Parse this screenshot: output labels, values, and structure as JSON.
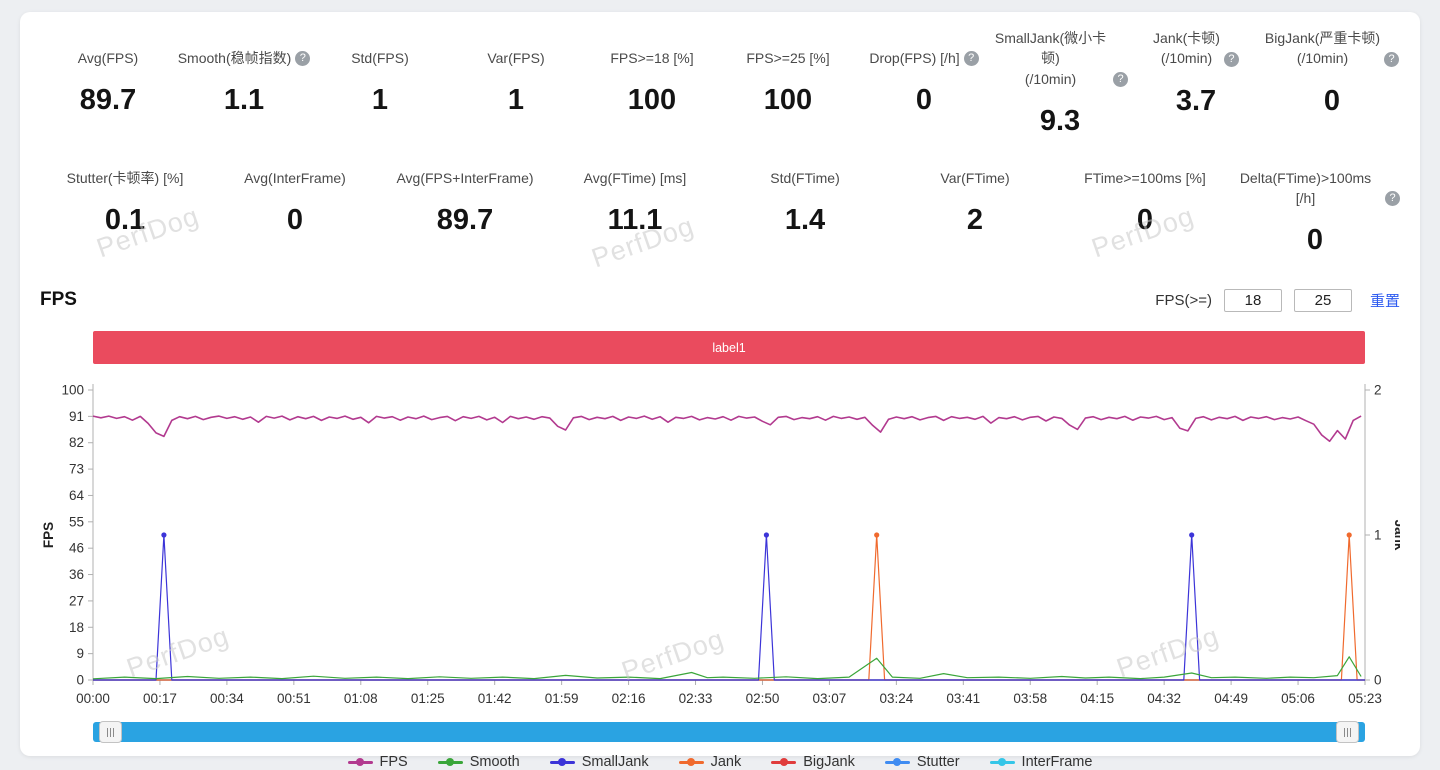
{
  "stats": {
    "row1": [
      {
        "label": "Avg(FPS)",
        "value": "89.7",
        "help": false
      },
      {
        "label": "Smooth(稳帧指数)",
        "value": "1.1",
        "help": true
      },
      {
        "label": "Std(FPS)",
        "value": "1",
        "help": false
      },
      {
        "label": "Var(FPS)",
        "value": "1",
        "help": false
      },
      {
        "label": "FPS>=18 [%]",
        "value": "100",
        "help": false
      },
      {
        "label": "FPS>=25 [%]",
        "value": "100",
        "help": false
      },
      {
        "label": "Drop(FPS) [/h]",
        "value": "0",
        "help": true
      },
      {
        "label": "SmallJank(微小卡顿)\n(/10min)",
        "value": "9.3",
        "help": true
      },
      {
        "label": "Jank(卡顿)\n(/10min)",
        "value": "3.7",
        "help": true
      },
      {
        "label": "BigJank(严重卡顿)\n(/10min)",
        "value": "0",
        "help": true
      }
    ],
    "row2": [
      {
        "label": "Stutter(卡顿率) [%]",
        "value": "0.1",
        "help": false
      },
      {
        "label": "Avg(InterFrame)",
        "value": "0",
        "help": false
      },
      {
        "label": "Avg(FPS+InterFrame)",
        "value": "89.7",
        "help": false
      },
      {
        "label": "Avg(FTime) [ms]",
        "value": "11.1",
        "help": false
      },
      {
        "label": "Std(FTime)",
        "value": "1.4",
        "help": false
      },
      {
        "label": "Var(FTime)",
        "value": "2",
        "help": false
      },
      {
        "label": "FTime>=100ms [%]",
        "value": "0",
        "help": false
      },
      {
        "label": "Delta(FTime)>100ms [/h]",
        "value": "0",
        "help": true
      }
    ]
  },
  "fps_section": {
    "title": "FPS",
    "threshold_label": "FPS(>=)",
    "threshold_low": "18",
    "threshold_high": "25",
    "reset_label": "重置"
  },
  "watermark": {
    "text": "PerfDog"
  },
  "chart_data": {
    "type": "line",
    "banner_label": "label1",
    "banner_color": "#ea4b5e",
    "duration_s": 323,
    "x_ticks": [
      "00:00",
      "00:17",
      "00:34",
      "00:51",
      "01:08",
      "01:25",
      "01:42",
      "01:59",
      "02:16",
      "02:33",
      "02:50",
      "03:07",
      "03:24",
      "03:41",
      "03:58",
      "04:15",
      "04:32",
      "04:49",
      "05:06",
      "05:23"
    ],
    "left_axis": {
      "label": "FPS",
      "min": 0,
      "max": 100,
      "ticks": [
        0,
        9,
        18,
        27,
        36,
        46,
        55,
        64,
        73,
        82,
        91,
        100
      ]
    },
    "right_axis": {
      "label": "Jank",
      "min": 0,
      "max": 2,
      "ticks": [
        0,
        1,
        2
      ]
    },
    "legend_position": "bottom",
    "grid": false,
    "series": [
      {
        "name": "FPS",
        "color": "#b23a8f",
        "axis": "left",
        "dt": 2,
        "values": [
          91,
          90.4,
          91,
          90.2,
          90.8,
          89.6,
          90.9,
          88.5,
          85.2,
          84,
          89.5,
          90.8,
          90.1,
          90.9,
          89.8,
          90.6,
          91,
          90.2,
          90.8,
          89.9,
          90.7,
          88.9,
          90.9,
          90.3,
          91,
          89.7,
          90.8,
          90.1,
          90.9,
          89.5,
          90.7,
          90.2,
          91,
          89.9,
          90.6,
          88.7,
          90.9,
          90.3,
          90.8,
          89.6,
          90.7,
          90.1,
          91,
          89.8,
          90.5,
          90.9,
          89.4,
          90.8,
          90.2,
          90.9,
          89.7,
          90.6,
          88.8,
          90.9,
          90.1,
          90.7,
          89.9,
          90.8,
          90.3,
          87.5,
          86.2,
          90.4,
          90.9,
          89.8,
          90.6,
          90.1,
          90.9,
          89.5,
          90.7,
          90.2,
          91,
          89.9,
          90.8,
          88.9,
          90.6,
          90.2,
          90.9,
          89.7,
          90.5,
          90,
          90.8,
          89.6,
          90.9,
          90.3,
          90.7,
          89.2,
          88,
          90.6,
          90.9,
          89.8,
          90.5,
          90.1,
          90.8,
          89.6,
          90.9,
          90.2,
          90.7,
          89.9,
          90.6,
          87.8,
          85.5,
          89.9,
          90.7,
          90.1,
          90.8,
          89.7,
          90.5,
          90.9,
          89.5,
          90.8,
          90.2,
          90.6,
          89.9,
          90.9,
          88.6,
          90.5,
          90.1,
          90.8,
          89.7,
          90.6,
          90.9,
          89.3,
          90.7,
          90.2,
          87.9,
          86.4,
          90.3,
          90.8,
          89.8,
          90.6,
          90.1,
          90.9,
          89.6,
          90.7,
          90.3,
          90.9,
          89.8,
          90.5,
          86.8,
          85.9,
          90.2,
          90.8,
          89.7,
          90.6,
          90.1,
          90.9,
          89.5,
          90.7,
          90.2,
          90.8,
          89.8,
          90.5,
          90,
          90.7,
          89.4,
          88.2,
          84.5,
          82.3,
          86,
          83.1,
          89.5,
          91
        ]
      },
      {
        "name": "Smooth",
        "color": "#3aa63a",
        "axis": "left",
        "points": [
          [
            0,
            0.4
          ],
          [
            8,
            1
          ],
          [
            16,
            0.5
          ],
          [
            24,
            1.2
          ],
          [
            32,
            0.6
          ],
          [
            40,
            1
          ],
          [
            48,
            0.5
          ],
          [
            56,
            1.3
          ],
          [
            64,
            0.6
          ],
          [
            72,
            1
          ],
          [
            80,
            0.5
          ],
          [
            88,
            1.1
          ],
          [
            96,
            0.6
          ],
          [
            104,
            1
          ],
          [
            112,
            0.5
          ],
          [
            120,
            1.6
          ],
          [
            128,
            0.7
          ],
          [
            136,
            1
          ],
          [
            144,
            0.5
          ],
          [
            152,
            2.6
          ],
          [
            156,
            0.8
          ],
          [
            160,
            1
          ],
          [
            168,
            0.6
          ],
          [
            176,
            1.1
          ],
          [
            184,
            0.5
          ],
          [
            192,
            1
          ],
          [
            199,
            7.5
          ],
          [
            203,
            1
          ],
          [
            210,
            0.6
          ],
          [
            216,
            2.2
          ],
          [
            222,
            0.8
          ],
          [
            230,
            1
          ],
          [
            238,
            0.6
          ],
          [
            246,
            1.2
          ],
          [
            252,
            0.7
          ],
          [
            258,
            1
          ],
          [
            266,
            0.5
          ],
          [
            272,
            1
          ],
          [
            279,
            2.4
          ],
          [
            284,
            0.8
          ],
          [
            290,
            1
          ],
          [
            298,
            0.6
          ],
          [
            304,
            1
          ],
          [
            310,
            0.8
          ],
          [
            316,
            1.5
          ],
          [
            319,
            8
          ],
          [
            322,
            1.2
          ]
        ]
      },
      {
        "name": "SmallJank",
        "color": "#3c34d8",
        "axis": "right",
        "points": [
          [
            0,
            0
          ],
          [
            16,
            0
          ],
          [
            18,
            1
          ],
          [
            20,
            0
          ],
          [
            169,
            0
          ],
          [
            171,
            1
          ],
          [
            173,
            0
          ],
          [
            277,
            0
          ],
          [
            279,
            1
          ],
          [
            281,
            0
          ],
          [
            323,
            0
          ]
        ]
      },
      {
        "name": "Jank",
        "color": "#f06a2e",
        "axis": "right",
        "points": [
          [
            0,
            0
          ],
          [
            197,
            0
          ],
          [
            199,
            1
          ],
          [
            201,
            0
          ],
          [
            317,
            0
          ],
          [
            319,
            1
          ],
          [
            321,
            0
          ],
          [
            323,
            0
          ]
        ]
      },
      {
        "name": "BigJank",
        "color": "#e03c3c",
        "axis": "right",
        "points": [
          [
            0,
            0
          ],
          [
            323,
            0
          ]
        ]
      },
      {
        "name": "Stutter",
        "color": "#3f8cf2",
        "axis": "left",
        "points": [
          [
            0,
            0
          ],
          [
            323,
            0
          ]
        ]
      },
      {
        "name": "InterFrame",
        "color": "#35c6e8",
        "axis": "left",
        "points": [
          [
            0,
            0
          ],
          [
            323,
            0
          ]
        ]
      }
    ]
  }
}
